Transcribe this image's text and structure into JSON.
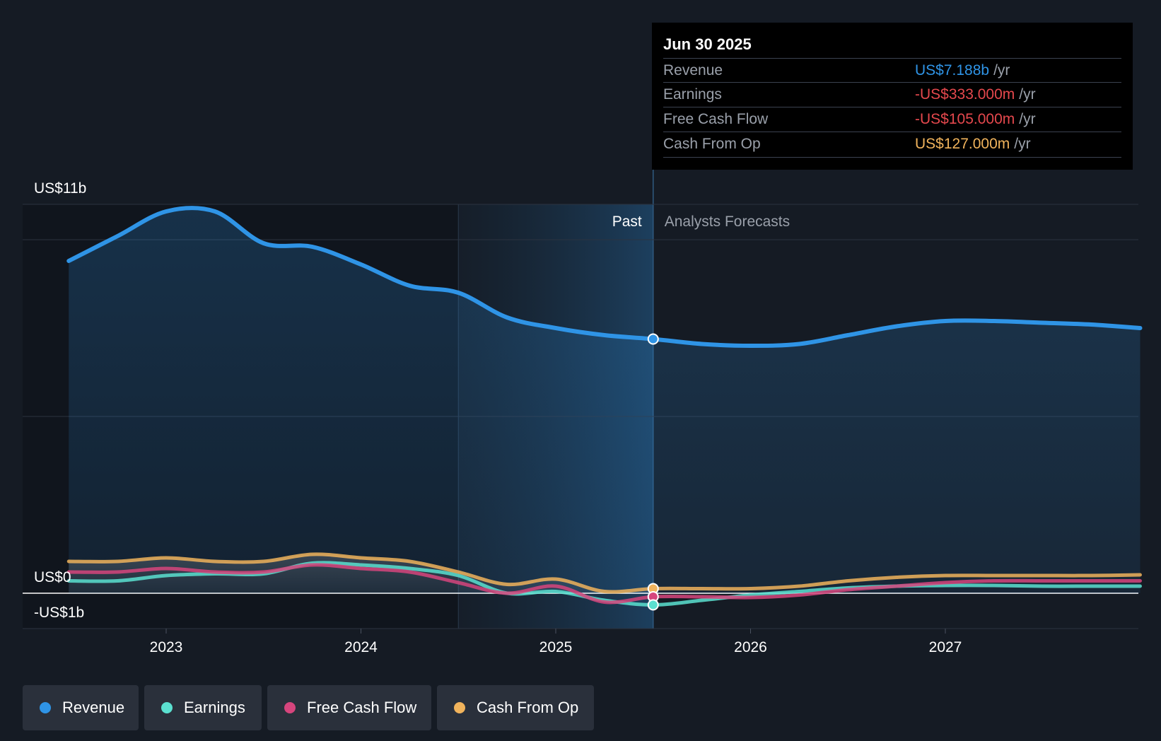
{
  "tooltip": {
    "date": "Jun 30 2025",
    "unit": "/yr",
    "rows": [
      {
        "label": "Revenue",
        "value": "US$7.188b",
        "color": "#2f94e6"
      },
      {
        "label": "Earnings",
        "value": "-US$333.000m",
        "color": "#e5484d"
      },
      {
        "label": "Free Cash Flow",
        "value": "-US$105.000m",
        "color": "#e5484d"
      },
      {
        "label": "Cash From Op",
        "value": "US$127.000m",
        "color": "#f0b35c"
      }
    ]
  },
  "markers": {
    "past": "Past",
    "forecast": "Analysts Forecasts"
  },
  "legend": [
    {
      "label": "Revenue",
      "color": "#2f94e6"
    },
    {
      "label": "Earnings",
      "color": "#5be0d0"
    },
    {
      "label": "Free Cash Flow",
      "color": "#d6457d"
    },
    {
      "label": "Cash From Op",
      "color": "#f0b35c"
    }
  ],
  "chart_data": {
    "type": "line",
    "title": "",
    "xlabel": "",
    "ylabel": "",
    "ylim": [
      -1,
      11
    ],
    "y_tick_labels": [
      "US$11b",
      "US$0",
      "-US$1b"
    ],
    "y_tick_values": [
      11,
      0,
      -1
    ],
    "x_tick_labels": [
      "2023",
      "2024",
      "2025",
      "2026",
      "2027"
    ],
    "x_tick_values": [
      2023.0,
      2024.0,
      2025.0,
      2026.0,
      2027.0
    ],
    "xlim": [
      2022.25,
      2028.0
    ],
    "past_region_start": 2024.5,
    "current_date": 2025.5,
    "series": [
      {
        "name": "Revenue",
        "color": "#2f94e6",
        "x": [
          2022.5,
          2022.75,
          2023.0,
          2023.25,
          2023.5,
          2023.75,
          2024.0,
          2024.25,
          2024.5,
          2024.75,
          2025.0,
          2025.25,
          2025.5,
          2025.75,
          2026.0,
          2026.25,
          2026.5,
          2026.75,
          2027.0,
          2027.25,
          2027.5,
          2027.75,
          2028.0
        ],
        "values": [
          9.4,
          10.1,
          10.8,
          10.8,
          9.9,
          9.8,
          9.3,
          8.7,
          8.5,
          7.8,
          7.5,
          7.3,
          7.19,
          7.05,
          7.0,
          7.05,
          7.3,
          7.55,
          7.7,
          7.7,
          7.65,
          7.6,
          7.5
        ]
      },
      {
        "name": "Earnings",
        "color": "#5be0d0",
        "x": [
          2022.5,
          2022.75,
          2023.0,
          2023.25,
          2023.5,
          2023.75,
          2024.0,
          2024.25,
          2024.5,
          2024.75,
          2025.0,
          2025.25,
          2025.5,
          2025.75,
          2026.0,
          2026.25,
          2026.5,
          2026.75,
          2027.0,
          2027.25,
          2027.5,
          2027.75,
          2028.0
        ],
        "values": [
          0.35,
          0.35,
          0.5,
          0.55,
          0.55,
          0.85,
          0.8,
          0.7,
          0.5,
          0.0,
          0.05,
          -0.2,
          -0.33,
          -0.2,
          -0.05,
          0.05,
          0.15,
          0.2,
          0.22,
          0.22,
          0.2,
          0.2,
          0.2
        ]
      },
      {
        "name": "Free Cash Flow",
        "color": "#d6457d",
        "x": [
          2022.5,
          2022.75,
          2023.0,
          2023.25,
          2023.5,
          2023.75,
          2024.0,
          2024.25,
          2024.5,
          2024.75,
          2025.0,
          2025.25,
          2025.5,
          2025.75,
          2026.0,
          2026.25,
          2026.5,
          2026.75,
          2027.0,
          2027.25,
          2027.5,
          2027.75,
          2028.0
        ],
        "values": [
          0.6,
          0.6,
          0.7,
          0.6,
          0.6,
          0.8,
          0.7,
          0.6,
          0.3,
          0.0,
          0.2,
          -0.25,
          -0.1,
          -0.1,
          -0.12,
          -0.05,
          0.1,
          0.2,
          0.3,
          0.35,
          0.35,
          0.35,
          0.35
        ]
      },
      {
        "name": "Cash From Op",
        "color": "#f0b35c",
        "x": [
          2022.5,
          2022.75,
          2023.0,
          2023.25,
          2023.5,
          2023.75,
          2024.0,
          2024.25,
          2024.5,
          2024.75,
          2025.0,
          2025.25,
          2025.5,
          2025.75,
          2026.0,
          2026.25,
          2026.5,
          2026.75,
          2027.0,
          2027.25,
          2027.5,
          2027.75,
          2028.0
        ],
        "values": [
          0.9,
          0.9,
          1.0,
          0.9,
          0.9,
          1.1,
          1.0,
          0.9,
          0.6,
          0.25,
          0.4,
          0.05,
          0.13,
          0.13,
          0.13,
          0.2,
          0.35,
          0.45,
          0.5,
          0.5,
          0.5,
          0.5,
          0.52
        ]
      }
    ]
  }
}
